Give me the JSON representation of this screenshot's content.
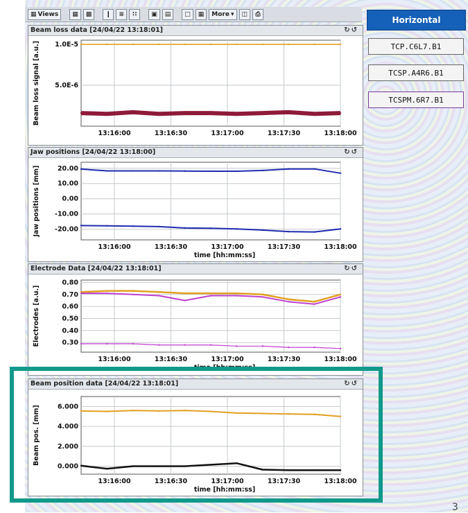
{
  "toolbar": {
    "views_label": "Views",
    "more_label": "More"
  },
  "sidebar": {
    "plane_tab": "Horizontal",
    "collimators": [
      "TCP.C6L7.B1",
      "TCSP.A4R6.B1",
      "TCSPM.6R7.B1"
    ]
  },
  "colors": {
    "accent": "#1560b8",
    "highlight_box": "#11998a",
    "loss_series": "#8e1a3a",
    "jaw_series": "#1f2bb0",
    "electrode_orange": "#e0a020",
    "electrode_magenta": "#c040d0",
    "position_orange": "#e0a020"
  },
  "page_number": "3",
  "chart_data": [
    {
      "type": "scatter",
      "title": "Beam loss data [24/04/22 13:18:01]",
      "ylabel": "Beam loss signal [a.u.]",
      "xlabel": "",
      "ylim": [
        0,
        1.05e-05
      ],
      "ytick_labels": [
        "1.0E-5",
        "5.0E-6"
      ],
      "ytick_values": [
        1e-05,
        5e-06
      ],
      "xtick_labels": [
        "13:16:00",
        "13:16:30",
        "13:17:00",
        "13:17:30",
        "13:18:00"
      ],
      "series": [
        {
          "values": [
            1.6e-06,
            1.5e-06,
            1.7e-06,
            1.5e-06,
            1.6e-06,
            1.6e-06,
            1.5e-06,
            1.6e-06,
            1.7e-06,
            1.5e-06,
            1.6e-06
          ]
        },
        {
          "values": [
            1e-05,
            1e-05,
            1e-05,
            1e-05,
            1e-05,
            1e-05,
            1e-05,
            1e-05,
            1e-05,
            1e-05,
            1e-05
          ]
        }
      ],
      "grid": true
    },
    {
      "type": "line",
      "title": "Jaw positions [24/04/22 13:18:00]",
      "ylabel": "Jaw positions [mm]",
      "xlabel": "time [hh:mm:ss]",
      "ylim": [
        -27,
        24
      ],
      "ytick_labels": [
        "20.00",
        "10.00",
        "0.00",
        "-10.00",
        "-20.00"
      ],
      "ytick_values": [
        20,
        10,
        0,
        -10,
        -20
      ],
      "xtick_labels": [
        "13:16:00",
        "13:16:30",
        "13:17:00",
        "13:17:30",
        "13:18:00"
      ],
      "series": [
        {
          "values": [
            19.5,
            18.3,
            18.3,
            18.3,
            18.2,
            18.1,
            18.1,
            18.6,
            19.6,
            19.6,
            16.8
          ]
        },
        {
          "values": [
            -17.6,
            -17.8,
            -18.0,
            -18.3,
            -19.2,
            -19.4,
            -19.8,
            -20.6,
            -21.6,
            -21.8,
            -19.8
          ]
        }
      ],
      "grid": true
    },
    {
      "type": "line",
      "title": "Electrode Data [24/04/22 13:18:01]",
      "ylabel": "Electrodes [a.u.]",
      "xlabel": "time [hh:mm:ss]",
      "ylim": [
        0.22,
        0.82
      ],
      "ytick_labels": [
        "0.80",
        "0.70",
        "0.60",
        "0.50",
        "0.40",
        "0.30"
      ],
      "ytick_values": [
        0.8,
        0.7,
        0.6,
        0.5,
        0.4,
        0.3
      ],
      "xtick_labels": [
        "13:16:00",
        "13:16:30",
        "13:17:00",
        "13:17:30",
        "13:18:00"
      ],
      "series": [
        {
          "values": [
            0.72,
            0.73,
            0.73,
            0.72,
            0.71,
            0.71,
            0.71,
            0.7,
            0.66,
            0.64,
            0.7
          ]
        },
        {
          "values": [
            0.71,
            0.71,
            0.7,
            0.69,
            0.65,
            0.69,
            0.69,
            0.68,
            0.64,
            0.62,
            0.68
          ]
        },
        {
          "values": [
            0.29,
            0.29,
            0.29,
            0.28,
            0.28,
            0.28,
            0.27,
            0.27,
            0.26,
            0.26,
            0.25
          ]
        }
      ],
      "grid": true
    },
    {
      "type": "line",
      "title": "Beam position data [24/04/22 13:18:01]",
      "ylabel": "Beam pos. [mm]",
      "xlabel": "time [hh:mm:ss]",
      "ylim": [
        -0.8,
        7.0
      ],
      "ytick_labels": [
        "6.000",
        "4.000",
        "2.000",
        "0.000"
      ],
      "ytick_values": [
        6,
        4,
        2,
        0
      ],
      "xtick_labels": [
        "13:16:00",
        "13:16:30",
        "13:17:00",
        "13:17:30",
        "13:18:00"
      ],
      "series": [
        {
          "values": [
            5.55,
            5.5,
            5.6,
            5.55,
            5.6,
            5.5,
            5.35,
            5.3,
            5.25,
            5.2,
            5.0
          ]
        },
        {
          "values": [
            0.05,
            -0.25,
            0.0,
            0.0,
            0.0,
            0.15,
            0.3,
            -0.35,
            -0.4,
            -0.4,
            -0.4
          ]
        }
      ],
      "grid": true
    }
  ]
}
